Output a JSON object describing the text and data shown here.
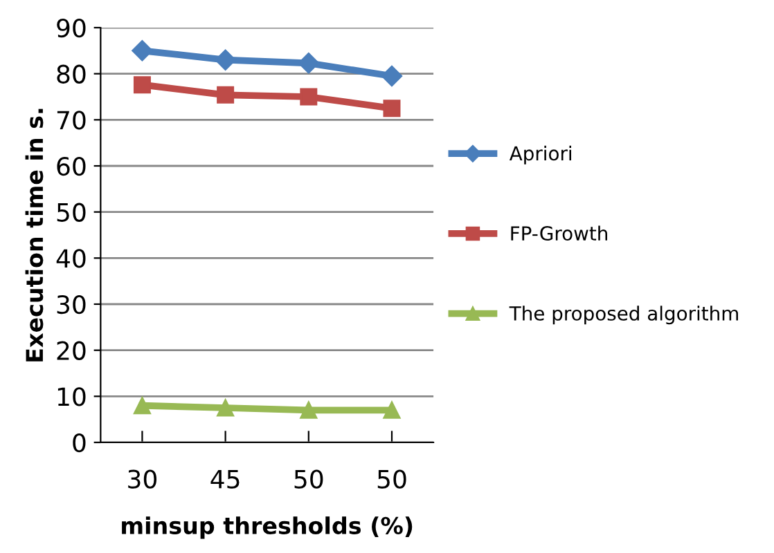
{
  "chart_data": {
    "type": "line",
    "xlabel": "minsup thresholds (%)",
    "ylabel": "Execution time in s.",
    "categories": [
      "30",
      "45",
      "50",
      "50"
    ],
    "series": [
      {
        "name": "Apriori",
        "color": "#4a7ebb",
        "marker": "diamond",
        "values": [
          85,
          83,
          82.3,
          79.5
        ]
      },
      {
        "name": "FP-Growth",
        "color": "#be4b48",
        "marker": "square",
        "values": [
          77.6,
          75.4,
          75,
          72.5
        ]
      },
      {
        "name": "The proposed algorithm",
        "color": "#98b954",
        "marker": "triangle",
        "values": [
          8,
          7.5,
          7,
          7
        ]
      }
    ],
    "ylim": [
      0,
      90
    ],
    "yticks": [
      0,
      10,
      20,
      30,
      40,
      50,
      60,
      70,
      80,
      90
    ],
    "grid": "y",
    "legend": "right"
  }
}
